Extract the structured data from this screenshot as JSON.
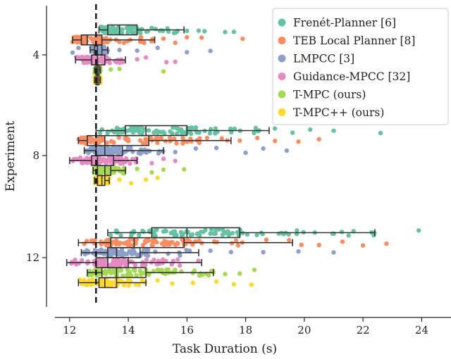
{
  "chart_data": {
    "type": "strip-box",
    "xlabel": "Task Duration (s)",
    "ylabel": "Experiment",
    "xlim": [
      11.5,
      25
    ],
    "x_ticks": [
      12,
      14,
      16,
      18,
      20,
      22,
      24
    ],
    "reference_line": {
      "x": 12.9,
      "style": "dashed"
    },
    "legend_position": "top-right",
    "series": [
      {
        "name": "Frenét-Planner [6]",
        "color": "#66c2a5"
      },
      {
        "name": "TEB Local Planner [8]",
        "color": "#fc8d62"
      },
      {
        "name": "LMPCC [3]",
        "color": "#8da0cb"
      },
      {
        "name": "Guidance-MPCC [32]",
        "color": "#e78ac3"
      },
      {
        "name": "T-MPC (ours)",
        "color": "#a6d854"
      },
      {
        "name": "T-MPC++ (ours)",
        "color": "#ffd92f"
      }
    ],
    "experiments": [
      {
        "label": "4",
        "boxes": [
          {
            "whisker_low": 13.0,
            "q1": 13.3,
            "median": 13.7,
            "q3": 14.3,
            "whisker_high": 15.9,
            "outliers": [
              16.0,
              16.4,
              16.6,
              17.3,
              17.6
            ]
          },
          {
            "whisker_low": 12.1,
            "q1": 12.4,
            "median": 12.6,
            "q3": 13.1,
            "whisker_high": 14.9,
            "outliers": [
              15.2,
              15.6,
              16.0,
              16.5,
              17.9
            ]
          },
          {
            "whisker_low": 12.7,
            "q1": 12.85,
            "median": 12.95,
            "q3": 13.1,
            "whisker_high": 13.3,
            "outliers": [
              12.1,
              12.3,
              13.7,
              14.3,
              15.0,
              16.0,
              16.8
            ]
          },
          {
            "whisker_low": 12.2,
            "q1": 12.75,
            "median": 12.95,
            "q3": 13.2,
            "whisker_high": 13.9,
            "outliers": [
              14.3,
              14.6,
              15.3,
              15.6
            ]
          },
          {
            "whisker_low": 12.85,
            "q1": 12.9,
            "median": 12.95,
            "q3": 13.0,
            "whisker_high": 13.05,
            "outliers": [
              13.4,
              13.7,
              15.2
            ]
          },
          {
            "whisker_low": 12.85,
            "q1": 12.9,
            "median": 12.95,
            "q3": 13.0,
            "whisker_high": 13.05,
            "outliers": []
          }
        ]
      },
      {
        "label": "8",
        "boxes": [
          {
            "whisker_low": 12.9,
            "q1": 13.9,
            "median": 14.6,
            "q3": 16.0,
            "whisker_high": 18.8,
            "outliers": [
              19.0,
              19.6,
              20.2,
              21.0,
              22.6
            ]
          },
          {
            "whisker_low": 12.3,
            "q1": 12.6,
            "median": 13.2,
            "q3": 14.7,
            "whisker_high": 17.5,
            "outliers": [
              17.8,
              18.4,
              19.0,
              19.8,
              20.5
            ]
          },
          {
            "whisker_low": 12.5,
            "q1": 12.9,
            "median": 13.2,
            "q3": 13.8,
            "whisker_high": 15.2,
            "outliers": [
              15.6,
              16.3,
              17.0,
              18.0,
              18.6,
              19.4
            ]
          },
          {
            "whisker_low": 12.0,
            "q1": 12.75,
            "median": 12.95,
            "q3": 13.5,
            "whisker_high": 14.3,
            "outliers": [
              14.8,
              15.2,
              15.6
            ]
          },
          {
            "whisker_low": 12.8,
            "q1": 12.95,
            "median": 13.2,
            "q3": 13.4,
            "whisker_high": 13.9,
            "outliers": [
              14.3,
              14.8,
              15.2,
              15.9
            ]
          },
          {
            "whisker_low": 12.85,
            "q1": 12.95,
            "median": 13.1,
            "q3": 13.2,
            "whisker_high": 13.35,
            "outliers": [
              13.7,
              14.1,
              14.6,
              15.0
            ]
          }
        ]
      },
      {
        "label": "12",
        "boxes": [
          {
            "whisker_low": 13.3,
            "q1": 14.8,
            "median": 16.0,
            "q3": 17.8,
            "whisker_high": 22.4,
            "outliers": [
              23.9
            ]
          },
          {
            "whisker_low": 12.3,
            "q1": 13.4,
            "median": 14.2,
            "q3": 15.9,
            "whisker_high": 19.6,
            "outliers": [
              19.9,
              20.5,
              21.3,
              22.0,
              22.8
            ]
          },
          {
            "whisker_low": 12.4,
            "q1": 13.3,
            "median": 13.6,
            "q3": 14.4,
            "whisker_high": 16.4,
            "outliers": [
              16.8,
              17.5,
              18.6,
              19.8,
              21.0
            ]
          },
          {
            "whisker_low": 11.9,
            "q1": 12.9,
            "median": 13.3,
            "q3": 14.0,
            "whisker_high": 16.5,
            "outliers": []
          },
          {
            "whisker_low": 12.6,
            "q1": 13.1,
            "median": 13.6,
            "q3": 14.6,
            "whisker_high": 16.9,
            "outliers": [
              17.3,
              17.8,
              18.3
            ]
          },
          {
            "whisker_low": 12.3,
            "q1": 13.0,
            "median": 13.2,
            "q3": 13.6,
            "whisker_high": 14.6,
            "outliers": [
              15.0,
              15.5,
              16.2,
              17.0,
              17.6,
              18.2
            ]
          }
        ]
      }
    ]
  }
}
